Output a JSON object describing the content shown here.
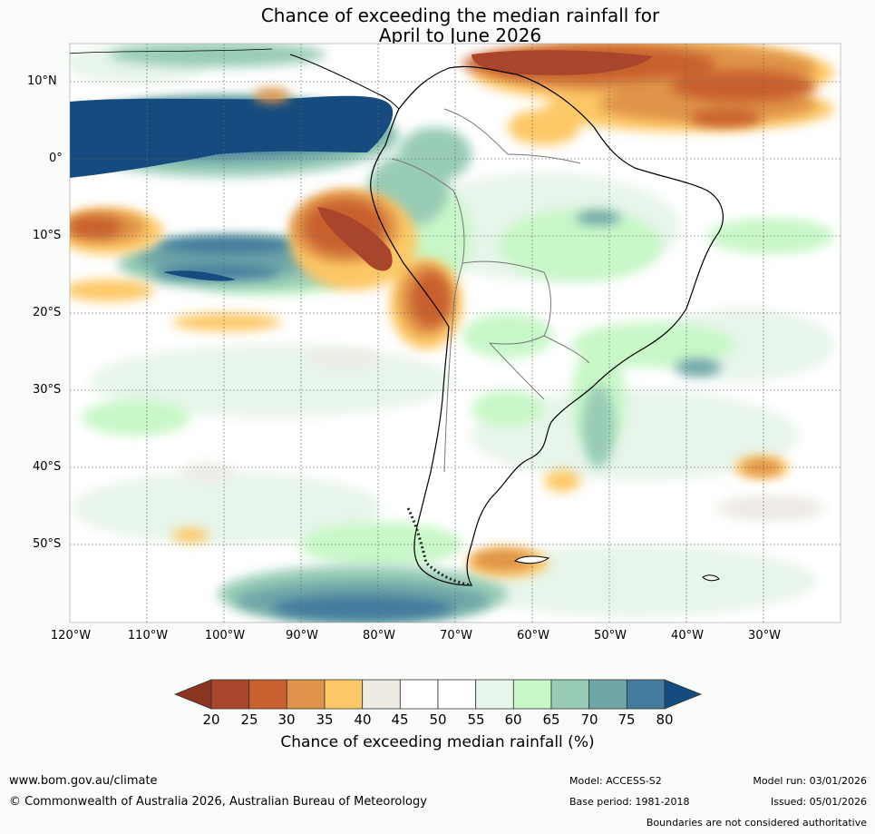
{
  "title": {
    "line1": "Chance of exceeding the median rainfall for",
    "line2": "April to June 2026"
  },
  "map": {
    "lat_labels": [
      "10°N",
      "0°",
      "10°S",
      "20°S",
      "30°S",
      "40°S",
      "50°S"
    ],
    "lon_labels": [
      "120°W",
      "110°W",
      "100°W",
      "90°W",
      "80°W",
      "70°W",
      "60°W",
      "50°W",
      "40°W",
      "30°W"
    ]
  },
  "colorbar": {
    "ticks": [
      "20",
      "25",
      "30",
      "35",
      "40",
      "45",
      "50",
      "55",
      "60",
      "65",
      "70",
      "75",
      "80"
    ],
    "colors": [
      "#a8452a",
      "#c8602f",
      "#e0944a",
      "#fdc866",
      "#eeebe5",
      "#ffffff",
      "#ffffff",
      "#e7f5ea",
      "#c8f7c8",
      "#98ccb6",
      "#6fa6a8",
      "#437b9d"
    ],
    "low_arrow_color": "#8b3421",
    "high_arrow_color": "#154b7e",
    "label": "Chance of exceeding median rainfall (%)"
  },
  "footer": {
    "url": "www.bom.gov.au/climate",
    "copyright": "© Commonwealth of Australia 2026, Australian Bureau of Meteorology",
    "model": "Model: ACCESS-S2",
    "base_period": "Base period: 1981-2018",
    "model_run": "Model run: 03/01/2026",
    "issued": "Issued: 05/01/2026",
    "disclaimer": "Boundaries are not considered authoritative"
  }
}
